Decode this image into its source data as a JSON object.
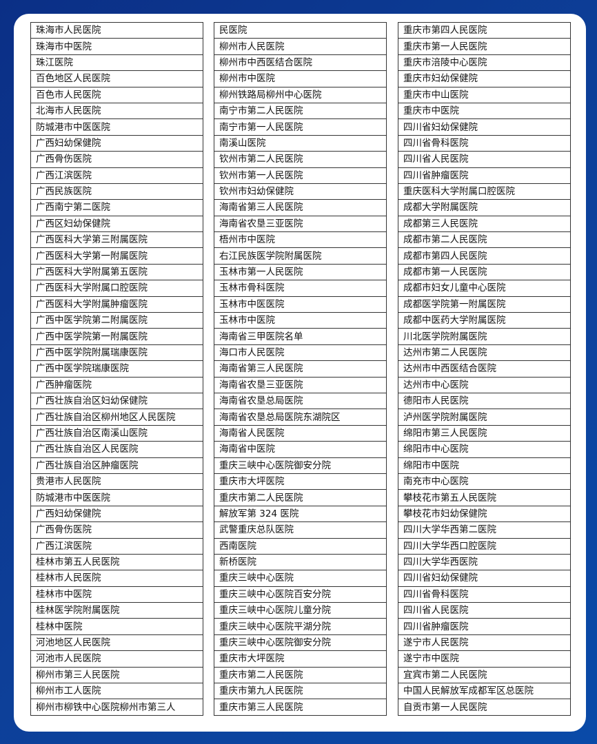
{
  "columns": [
    [
      "珠海市人民医院",
      "珠海市中医院",
      "珠江医院",
      "百色地区人民医院",
      "百色市人民医院",
      "北海市人民医院",
      "防城港市中医医院",
      "广西妇幼保健院",
      "广西骨伤医院",
      "广西江滨医院",
      "广西民族医院",
      "广西南宁第二医院",
      "广西区妇幼保健院",
      "广西医科大学第三附属医院",
      "广西医科大学第一附属医院",
      "广西医科大学附属第五医院",
      "广西医科大学附属口腔医院",
      "广西医科大学附属肿瘤医院",
      "广西中医学院第二附属医院",
      "广西中医学院第一附属医院",
      "广西中医学院附属瑞康医院",
      "广西中医学院瑞康医院",
      "广西肿瘤医院",
      "广西壮族自治区妇幼保健院",
      "广西壮族自治区柳州地区人民医院",
      "广西壮族自治区南溪山医院",
      "广西壮族自治区人民医院",
      "广西壮族自治区肿瘤医院",
      "贵港市人民医院",
      "防城港市中医医院",
      "广西妇幼保健院",
      "广西骨伤医院",
      "广西江滨医院",
      "桂林市第五人民医院",
      "桂林市人民医院",
      "桂林市中医院",
      "桂林医学院附属医院",
      "桂林中医院",
      "河池地区人民医院",
      "河池市人民医院",
      "柳州市第三人民医院",
      "柳州市工人医院",
      "柳州市柳铁中心医院柳州市第三人"
    ],
    [
      "民医院",
      "柳州市人民医院",
      "柳州市中西医结合医院",
      "柳州市中医院",
      "柳州铁路局柳州中心医院",
      "南宁市第二人民医院",
      "南宁市第一人民医院",
      "南溪山医院",
      "钦州市第二人民医院",
      "钦州市第一人民医院",
      "钦州市妇幼保健院",
      "海南省第三人民医院",
      "海南省农垦三亚医院",
      "梧州市中医院",
      "右江民族医学院附属医院",
      "玉林市第一人民医院",
      "玉林市骨科医院",
      "玉林市中医医院",
      "玉林市中医院",
      "海南省三甲医院名单",
      "海口市人民医院",
      "海南省第三人民医院",
      "海南省农垦三亚医院",
      "海南省农垦总局医院",
      "海南省农垦总局医院东湖院区",
      "海南省人民医院",
      "海南省中医院",
      "重庆三峡中心医院御安分院",
      "重庆市大坪医院",
      "重庆市第二人民医院",
      "解放军第 324 医院",
      "武警重庆总队医院",
      "西南医院",
      "新桥医院",
      "重庆三峡中心医院",
      "重庆三峡中心医院百安分院",
      "重庆三峡中心医院儿童分院",
      "重庆三峡中心医院平湖分院",
      "重庆三峡中心医院御安分院",
      "重庆市大坪医院",
      "重庆市第二人民医院",
      "重庆市第九人民医院",
      "重庆市第三人民医院"
    ],
    [
      "重庆市第四人民医院",
      "重庆市第一人民医院",
      "重庆市涪陵中心医院",
      "重庆市妇幼保健院",
      "重庆市中山医院",
      "重庆市中医院",
      "四川省妇幼保健院",
      "四川省骨科医院",
      "四川省人民医院",
      "四川省肿瘤医院",
      "重庆医科大学附属口腔医院",
      "成都大学附属医院",
      "成都第三人民医院",
      "成都市第二人民医院",
      "成都市第四人民医院",
      "成都市第一人民医院",
      "成都市妇女儿童中心医院",
      "成都医学院第一附属医院",
      "成都中医药大学附属医院",
      "川北医学院附属医院",
      "达州市第二人民医院",
      "达州市中西医结合医院",
      "达州市中心医院",
      "德阳市人民医院",
      "泸州医学院附属医院",
      "绵阳市第三人民医院",
      "绵阳市中心医院",
      "绵阳市中医院",
      "南充市中心医院",
      "攀枝花市第五人民医院",
      "攀枝花市妇幼保健院",
      "四川大学华西第二医院",
      "四川大学华西口腔医院",
      "四川大学华西医院",
      "四川省妇幼保健院",
      "四川省骨科医院",
      "四川省人民医院",
      "四川省肿瘤医院",
      "遂宁市人民医院",
      "遂宁市中医院",
      "宜宾市第二人民医院",
      "中国人民解放军成都军区总医院",
      "自贡市第一人民医院"
    ]
  ]
}
